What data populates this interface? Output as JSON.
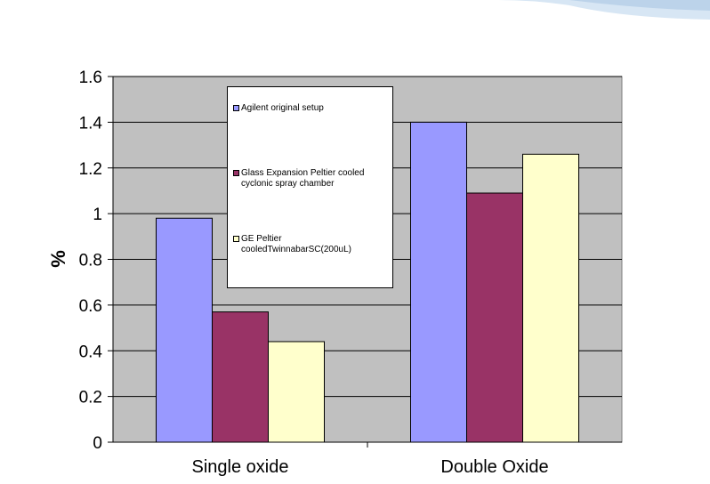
{
  "chart_data": {
    "type": "bar",
    "categories": [
      "Single oxide",
      "Double Oxide"
    ],
    "series": [
      {
        "name": "Agilent original setup",
        "values": [
          0.98,
          1.4
        ]
      },
      {
        "name": "Glass Expansion Peltier cooled cyclonic spray chamber",
        "values": [
          0.57,
          1.09
        ]
      },
      {
        "name": "GE Peltier cooledTwinnabarSC(200uL)",
        "values": [
          0.44,
          1.26
        ]
      }
    ],
    "title": "",
    "xlabel": "",
    "ylabel": "%",
    "ylim": [
      0,
      1.6
    ],
    "yticks": [
      "0",
      "0.2",
      "0.4",
      "0.6",
      "0.8",
      "1",
      "1.2",
      "1.4",
      "1.6"
    ],
    "grid": true,
    "legend_position": "top-center",
    "colors": {
      "plot_background": "#c0c0c0",
      "series": [
        "#9999ff",
        "#993366",
        "#ffffcc"
      ]
    }
  }
}
